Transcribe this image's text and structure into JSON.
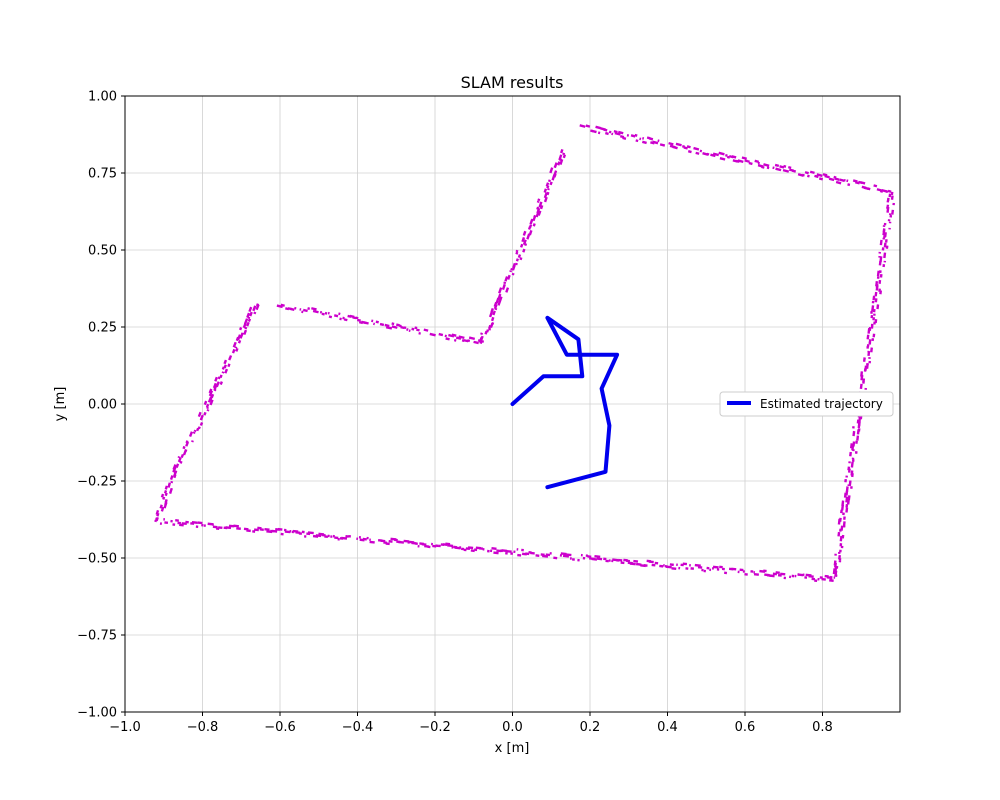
{
  "chart_data": {
    "type": "scatter",
    "title": "SLAM results",
    "xlabel": "x [m]",
    "ylabel": "y [m]",
    "xlim": [
      -1.0,
      1.0
    ],
    "ylim": [
      -1.0,
      1.0
    ],
    "grid": true,
    "legend_position": "center-right",
    "x_ticks": [
      -1.0,
      -0.8,
      -0.6,
      -0.4,
      -0.2,
      0.0,
      0.2,
      0.4,
      0.6,
      0.8
    ],
    "x_tick_labels": [
      "−1.0",
      "−0.8",
      "−0.6",
      "−0.4",
      "−0.2",
      "0.0",
      "0.2",
      "0.4",
      "0.6",
      "0.8"
    ],
    "y_ticks": [
      -1.0,
      -0.75,
      -0.5,
      -0.25,
      0.0,
      0.25,
      0.5,
      0.75,
      1.0
    ],
    "y_tick_labels": [
      "−1.00",
      "−0.75",
      "−0.50",
      "−0.25",
      "0.00",
      "0.25",
      "0.50",
      "0.75",
      "1.00"
    ],
    "series": [
      {
        "name": "Estimated trajectory",
        "kind": "line",
        "color": "#0000ee",
        "x": [
          0.0,
          0.08,
          0.18,
          0.17,
          0.09,
          0.14,
          0.27,
          0.23,
          0.25,
          0.24,
          0.09
        ],
        "y": [
          0.0,
          0.09,
          0.09,
          0.21,
          0.28,
          0.16,
          0.16,
          0.05,
          -0.07,
          -0.22,
          -0.27
        ]
      },
      {
        "kind": "scatter",
        "color": "#cc00cc",
        "wall_segments": [
          {
            "from": [
              -0.92,
              -0.38
            ],
            "to": [
              -0.87,
              -0.22
            ]
          },
          {
            "from": [
              -0.87,
              -0.22
            ],
            "to": [
              -0.66,
              0.33
            ]
          },
          {
            "from": [
              -0.6,
              0.32
            ],
            "to": [
              -0.08,
              0.2
            ]
          },
          {
            "from": [
              -0.08,
              0.2
            ],
            "to": [
              0.13,
              0.82
            ]
          },
          {
            "from": [
              0.18,
              0.9
            ],
            "to": [
              0.98,
              0.69
            ]
          },
          {
            "from": [
              0.98,
              0.69
            ],
            "to": [
              0.83,
              -0.57
            ]
          },
          {
            "from": [
              0.83,
              -0.57
            ],
            "to": [
              -0.92,
              -0.38
            ]
          }
        ]
      }
    ]
  }
}
